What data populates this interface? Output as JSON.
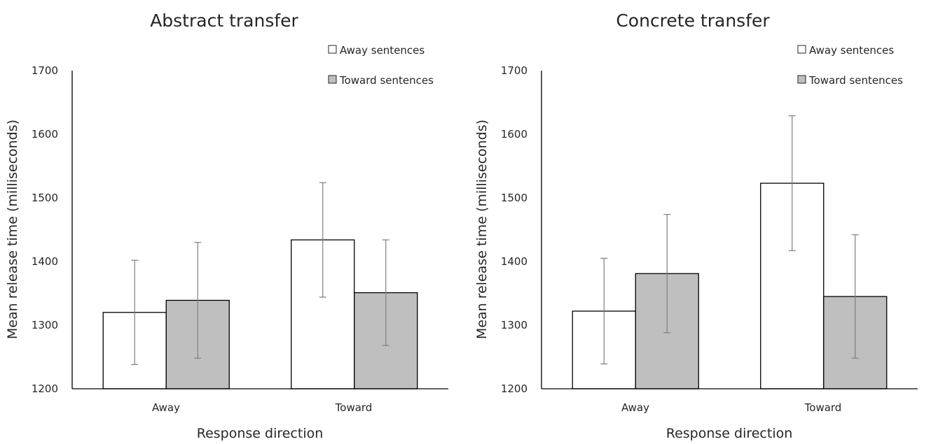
{
  "chart_data": [
    {
      "type": "bar",
      "title": "Abstract transfer",
      "xlabel": "Response direction",
      "ylabel": "Mean release time (milliseconds)",
      "categories": [
        "Away",
        "Toward"
      ],
      "ylim": [
        1200,
        1700
      ],
      "yticks": [
        "1200",
        "1300",
        "1400",
        "1500",
        "1600",
        "1700"
      ],
      "grid": false,
      "legend": "top-right",
      "series": [
        {
          "name": "Away sentences",
          "color": "#ffffff",
          "values": [
            1320,
            1434
          ],
          "errors": [
            82,
            90
          ]
        },
        {
          "name": "Toward sentences",
          "color": "#bfbfbf",
          "values": [
            1339,
            1351
          ],
          "errors": [
            91,
            83
          ]
        }
      ]
    },
    {
      "type": "bar",
      "title": "Concrete transfer",
      "xlabel": "Response direction",
      "ylabel": "Mean release time (milliseconds)",
      "categories": [
        "Away",
        "Toward"
      ],
      "ylim": [
        1200,
        1700
      ],
      "yticks": [
        "1200",
        "1300",
        "1400",
        "1500",
        "1600",
        "1700"
      ],
      "grid": false,
      "legend": "top-right",
      "series": [
        {
          "name": "Away sentences",
          "color": "#ffffff",
          "values": [
            1322,
            1523
          ],
          "errors": [
            83,
            106
          ]
        },
        {
          "name": "Toward sentences",
          "color": "#bfbfbf",
          "values": [
            1381,
            1345
          ],
          "errors": [
            93,
            97
          ]
        }
      ]
    }
  ]
}
